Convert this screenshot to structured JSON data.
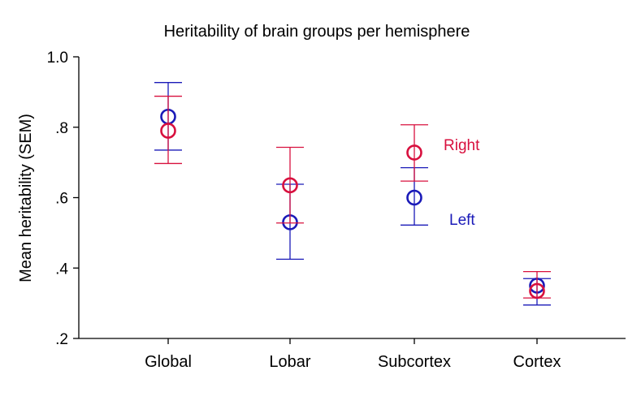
{
  "chart_data": {
    "type": "scatter",
    "title": "Heritability of brain groups per hemisphere",
    "xlabel": "",
    "ylabel": "Mean heritability (SEM)",
    "ylim": [
      0.2,
      1.0
    ],
    "yticks": [
      0.2,
      0.4,
      0.6,
      0.8,
      1.0
    ],
    "ytick_labels": [
      ".2",
      ".4",
      ".6",
      ".8",
      "1.0"
    ],
    "categories": [
      "Global",
      "Lobar",
      "Subcortex",
      "Cortex"
    ],
    "grid": false,
    "legend_placement": "inline-right",
    "series": [
      {
        "name": "Left",
        "color": "#1a1ab8",
        "values": [
          0.83,
          0.53,
          0.6,
          0.35
        ],
        "lower": [
          0.735,
          0.425,
          0.522,
          0.295
        ],
        "upper": [
          0.927,
          0.638,
          0.685,
          0.37
        ]
      },
      {
        "name": "Right",
        "color": "#d8103e",
        "values": [
          0.79,
          0.635,
          0.728,
          0.335
        ],
        "lower": [
          0.697,
          0.528,
          0.647,
          0.315
        ],
        "upper": [
          0.888,
          0.743,
          0.807,
          0.39
        ]
      }
    ]
  }
}
